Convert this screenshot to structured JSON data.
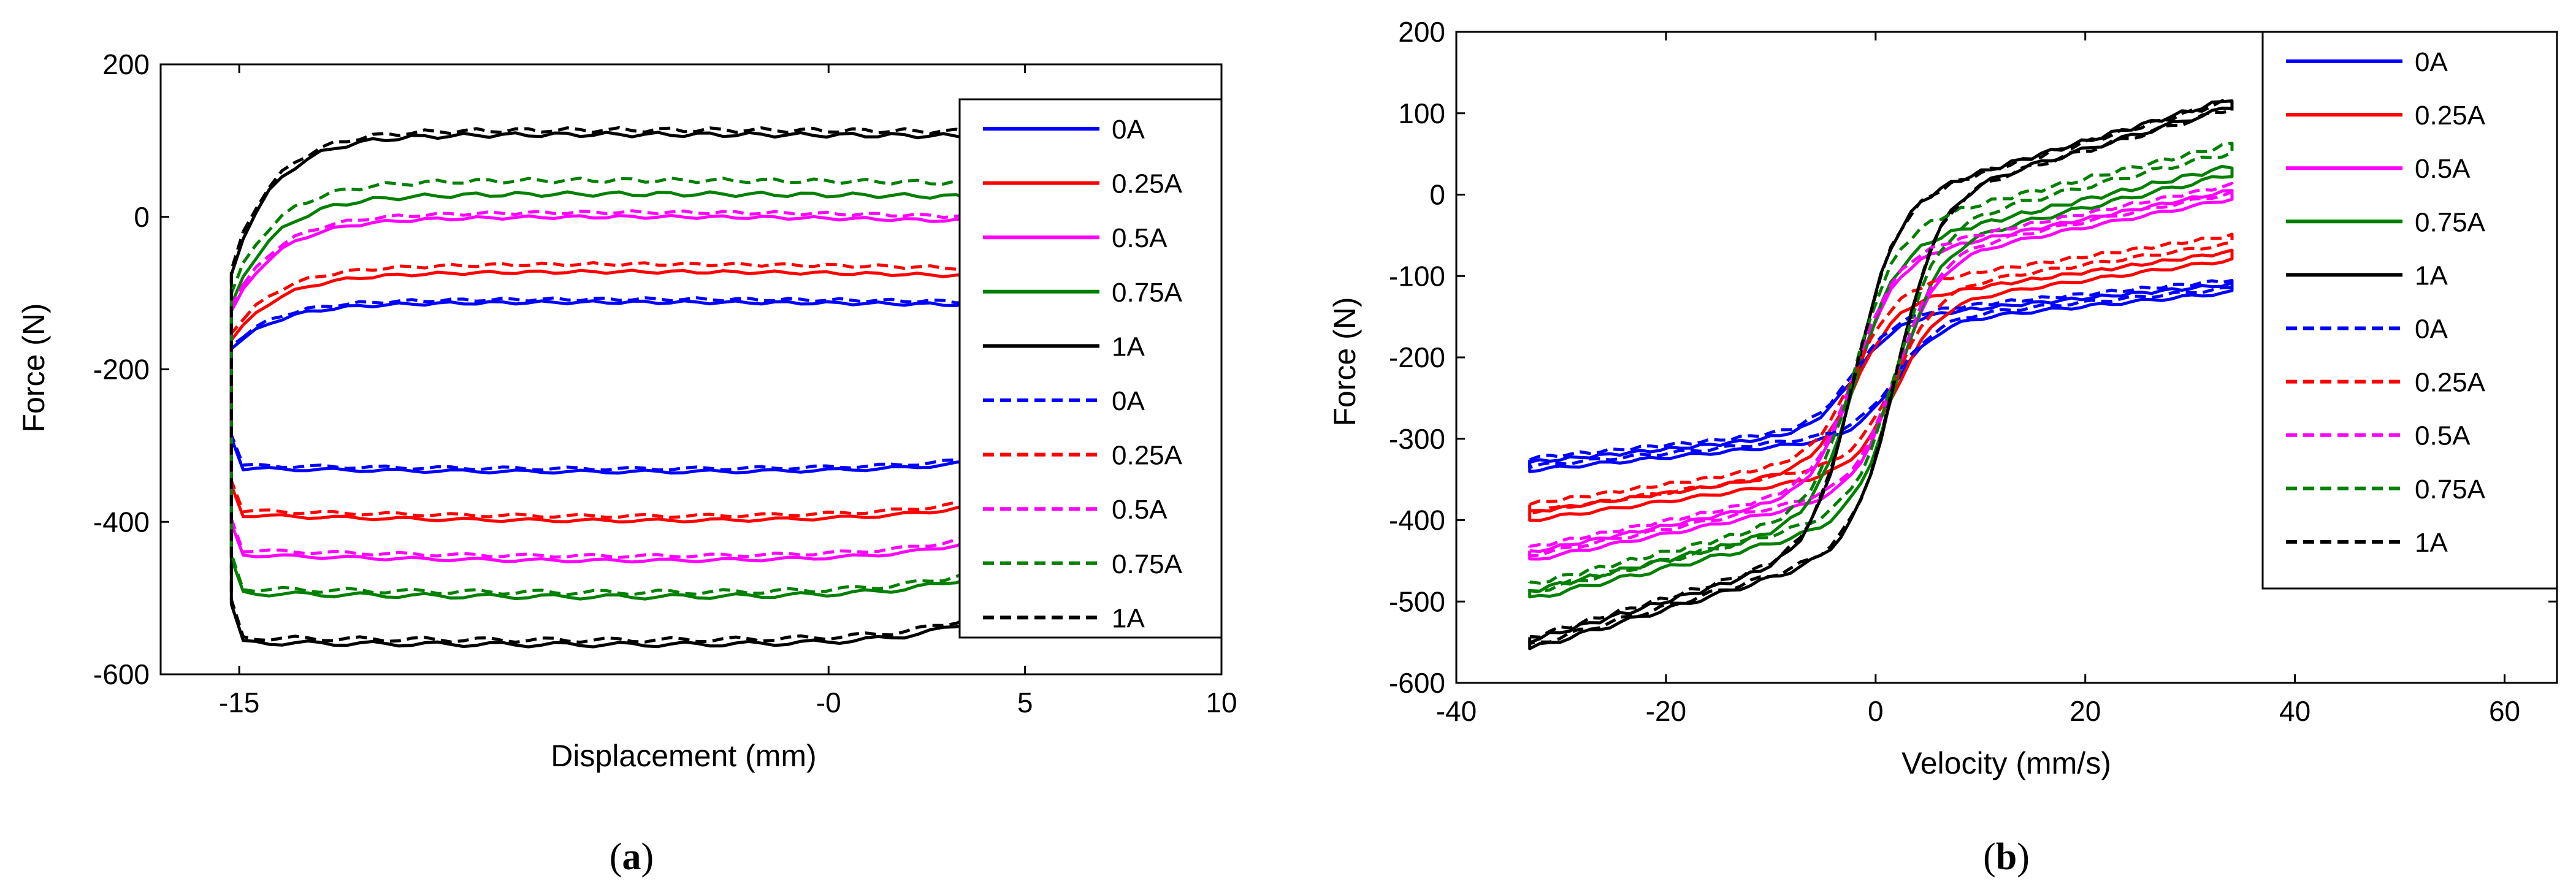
{
  "chart_data": [
    {
      "type": "line",
      "panel": "a",
      "caption_open": "(",
      "caption_letter": "a",
      "caption_close": ")",
      "xlabel": "Displacement (mm)",
      "ylabel": "Force (N)",
      "xlim": [
        -17,
        10
      ],
      "ylim": [
        -600,
        200
      ],
      "xticks": [
        -15,
        0,
        5,
        10
      ],
      "xtick_labels": [
        "-15",
        "-0",
        "5",
        "10"
      ],
      "yticks": [
        -600,
        -400,
        -200,
        0,
        200
      ],
      "ytick_labels": [
        "-600",
        "-400",
        "-200",
        "0",
        "200"
      ],
      "legend_position": "right",
      "series": [
        {
          "name": "0A",
          "color": "#0000ff",
          "style": "solid",
          "top": -112,
          "bottom": -330,
          "tilt": 0.55,
          "jitter": 2
        },
        {
          "name": "0.25A",
          "color": "#ff0000",
          "style": "solid",
          "top": -72,
          "bottom": -392,
          "tilt": 0.9,
          "jitter": 2
        },
        {
          "name": "0.5A",
          "color": "#ff00ff",
          "style": "solid",
          "top": 0,
          "bottom": -442,
          "tilt": 0.95,
          "jitter": 2
        },
        {
          "name": "0.75A",
          "color": "#008000",
          "style": "solid",
          "top": 30,
          "bottom": -488,
          "tilt": 0.6,
          "jitter": 3
        },
        {
          "name": "1A",
          "color": "#000000",
          "style": "solid",
          "top": 108,
          "bottom": -548,
          "tilt": 0.35,
          "jitter": 3
        },
        {
          "name": "0A",
          "color": "#0000ff",
          "style": "dashed",
          "top": -108,
          "bottom": -326,
          "tilt": 0.55,
          "jitter": 2
        },
        {
          "name": "0.25A",
          "color": "#ff0000",
          "style": "dashed",
          "top": -62,
          "bottom": -386,
          "tilt": 0.9,
          "jitter": 2
        },
        {
          "name": "0.5A",
          "color": "#ff00ff",
          "style": "dashed",
          "top": 6,
          "bottom": -436,
          "tilt": 0.95,
          "jitter": 2
        },
        {
          "name": "0.75A",
          "color": "#008000",
          "style": "dashed",
          "top": 48,
          "bottom": -482,
          "tilt": 0.6,
          "jitter": 3
        },
        {
          "name": "1A",
          "color": "#000000",
          "style": "dashed",
          "top": 114,
          "bottom": -542,
          "tilt": 0.35,
          "jitter": 3
        }
      ]
    },
    {
      "type": "line",
      "panel": "b",
      "caption_open": "(",
      "caption_letter": "b",
      "caption_close": ")",
      "xlabel": "Velocity (mm/s)",
      "ylabel": "Force (N)",
      "xlim": [
        -40,
        65
      ],
      "ylim": [
        -600,
        200
      ],
      "xticks": [
        -40,
        -20,
        0,
        20,
        40,
        60
      ],
      "xtick_labels": [
        "-40",
        "-20",
        "0",
        "20",
        "40",
        "60"
      ],
      "yticks": [
        -600,
        -500,
        -400,
        -300,
        -200,
        -100,
        0,
        100,
        200
      ],
      "ytick_labels": [
        "-600",
        "-500",
        "-400",
        "-300",
        "-200",
        "-100",
        "0",
        "100",
        "200"
      ],
      "legend_position": "top-right",
      "series": [
        {
          "name": "0A",
          "color": "#0000ff",
          "style": "solid",
          "top": -110,
          "bottom": -330,
          "jitter": 2
        },
        {
          "name": "0.25A",
          "color": "#ff0000",
          "style": "solid",
          "top": -70,
          "bottom": -392,
          "jitter": 2
        },
        {
          "name": "0.5A",
          "color": "#ff00ff",
          "style": "solid",
          "top": 5,
          "bottom": -442,
          "jitter": 2
        },
        {
          "name": "0.75A",
          "color": "#008000",
          "style": "solid",
          "top": 35,
          "bottom": -490,
          "jitter": 3
        },
        {
          "name": "1A",
          "color": "#000000",
          "style": "solid",
          "top": 118,
          "bottom": -552,
          "jitter": 3
        },
        {
          "name": "0A",
          "color": "#0000ff",
          "style": "dashed",
          "top": -105,
          "bottom": -325,
          "jitter": 2
        },
        {
          "name": "0.25A",
          "color": "#ff0000",
          "style": "dashed",
          "top": -50,
          "bottom": -382,
          "jitter": 2
        },
        {
          "name": "0.5A",
          "color": "#ff00ff",
          "style": "dashed",
          "top": 12,
          "bottom": -436,
          "jitter": 2
        },
        {
          "name": "0.75A",
          "color": "#008000",
          "style": "dashed",
          "top": 62,
          "bottom": -482,
          "jitter": 3
        },
        {
          "name": "1A",
          "color": "#000000",
          "style": "dashed",
          "top": 116,
          "bottom": -548,
          "jitter": 3
        }
      ]
    }
  ]
}
